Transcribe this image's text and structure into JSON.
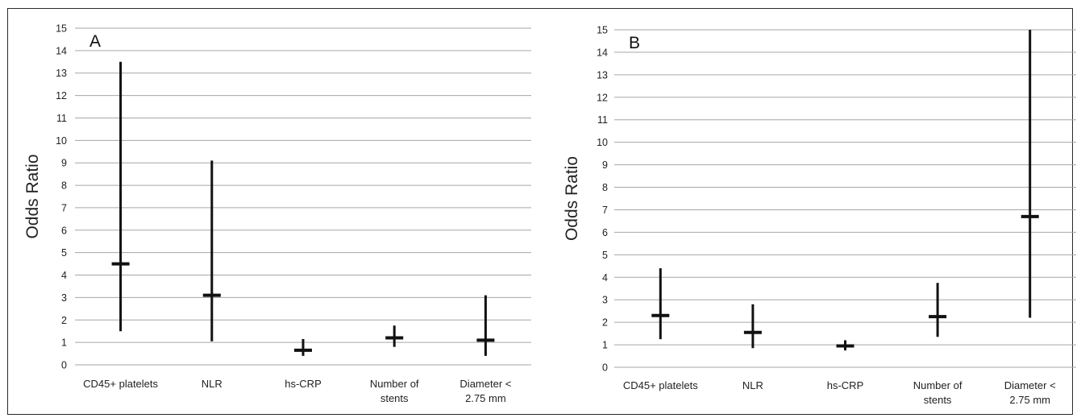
{
  "chart_data": [
    {
      "type": "error-bar",
      "panel_label": "A",
      "ylabel": "Odds Ratio",
      "ylim": [
        0,
        15
      ],
      "ytick_step": 1,
      "grid": true,
      "line_color": "#111111",
      "grid_color": "#a6a6a6",
      "categories": [
        "CD45+ platelets",
        "NLR",
        "hs-CRP",
        "Number of stents",
        "Diameter < 2.75 mm"
      ],
      "category_lines": [
        [
          "CD45+ platelets"
        ],
        [
          "NLR"
        ],
        [
          "hs-CRP"
        ],
        [
          "Number of",
          "stents"
        ],
        [
          "Diameter <",
          "2.75 mm"
        ]
      ],
      "estimate": [
        4.5,
        3.1,
        0.65,
        1.2,
        1.1
      ],
      "lower": [
        1.5,
        1.05,
        0.4,
        0.8,
        0.4
      ],
      "upper": [
        13.5,
        9.1,
        1.15,
        1.75,
        3.1
      ]
    },
    {
      "type": "error-bar",
      "panel_label": "B",
      "ylabel": "Odds Ratio",
      "ylim": [
        0,
        15
      ],
      "ytick_step": 1,
      "grid": true,
      "line_color": "#111111",
      "grid_color": "#a6a6a6",
      "categories": [
        "CD45+ platelets",
        "NLR",
        "hs-CRP",
        "Number of stents",
        "Diameter < 2.75 mm"
      ],
      "category_lines": [
        [
          "CD45+ platelets"
        ],
        [
          "NLR"
        ],
        [
          "hs-CRP"
        ],
        [
          "Number of",
          "stents"
        ],
        [
          "Diameter <",
          "2.75 mm"
        ]
      ],
      "estimate": [
        2.3,
        1.55,
        0.95,
        2.25,
        6.7
      ],
      "lower": [
        1.25,
        0.85,
        0.75,
        1.35,
        2.2
      ],
      "upper": [
        4.4,
        2.8,
        1.2,
        3.75,
        15.0
      ]
    }
  ]
}
